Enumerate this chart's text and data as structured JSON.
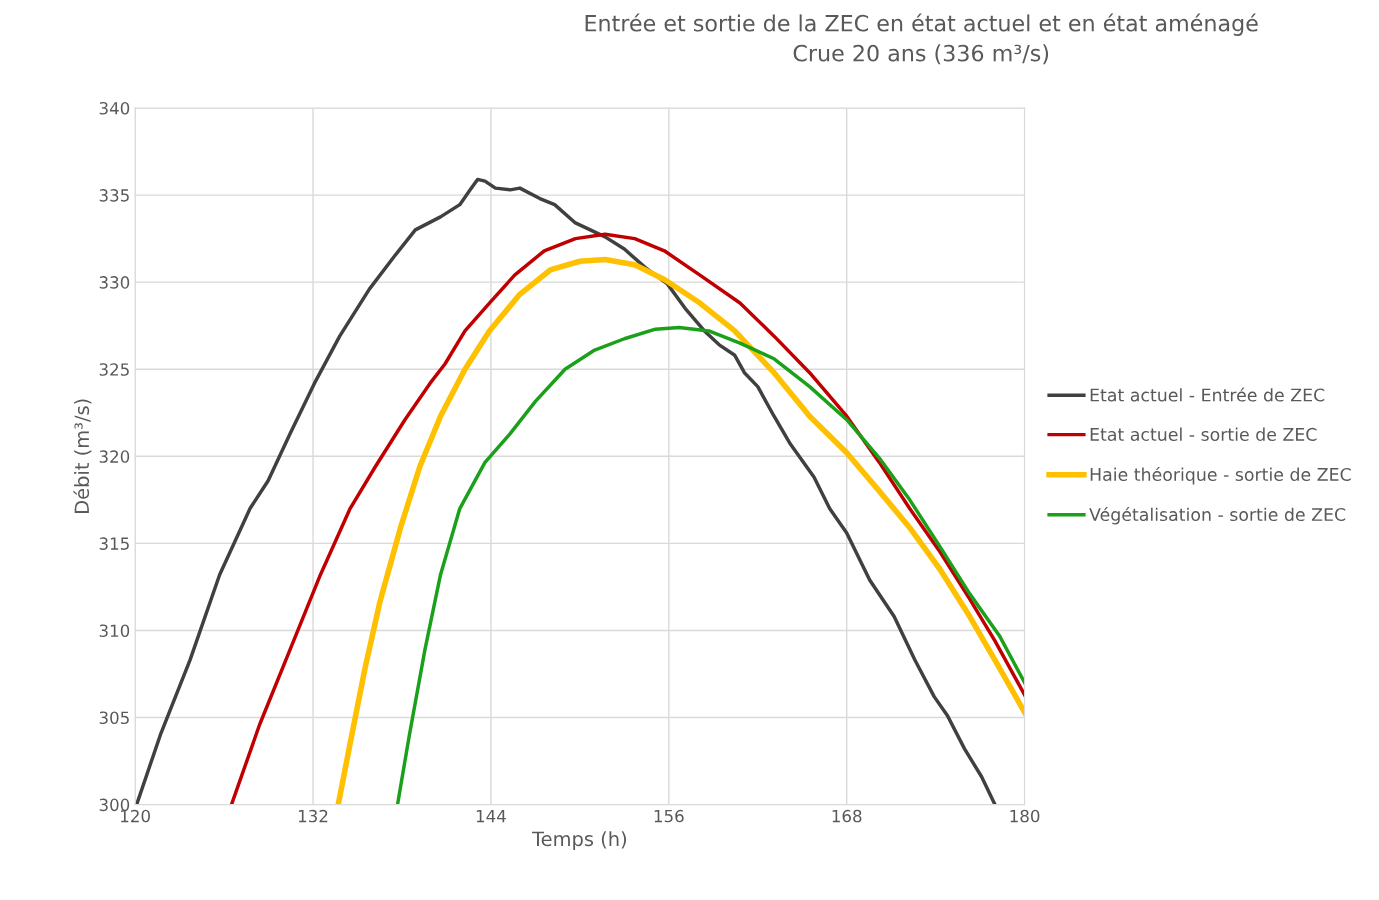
{
  "chart_data": {
    "type": "line",
    "title": "Entrée et sortie de la ZEC en état actuel et en état aménagé\nCrue 20 ans (336 m³/s)",
    "xlabel": "Temps (h)",
    "ylabel": "Débit (m³/s)",
    "xlim": [
      120,
      180
    ],
    "xticks": [
      120,
      132,
      144,
      156,
      168,
      180
    ],
    "ylim": [
      300,
      340
    ],
    "yticks": [
      300,
      305,
      310,
      315,
      320,
      325,
      330,
      335,
      340
    ],
    "grid": true,
    "legend": "right",
    "marker": "none",
    "line_style": "solid",
    "series": [
      {
        "name": "Etat actuel - Entrée de ZEC",
        "color": "#404040",
        "x": [
          120.1,
          121.7,
          123.7,
          125.7,
          127.75,
          128.97,
          130.45,
          132.1,
          133.8,
          135.8,
          137.5,
          138.9,
          140.6,
          141.9,
          142.6,
          143.1,
          143.6,
          144.3,
          145.3,
          145.95,
          147.3,
          148.3,
          149.7,
          151.7,
          153.0,
          154.4,
          155.9,
          157.1,
          158.4,
          159.4,
          160.45,
          161.1,
          162.0,
          163.1,
          164.2,
          165.8,
          166.85,
          168.0,
          169.55,
          171.2,
          172.6,
          173.9,
          174.8,
          175.95,
          177.1,
          178.0
        ],
        "values": [
          300.0,
          304.0,
          308.3,
          313.2,
          317.0,
          318.6,
          321.3,
          324.2,
          326.9,
          329.6,
          331.5,
          333.0,
          333.75,
          334.45,
          335.3,
          335.9,
          335.8,
          335.4,
          335.3,
          335.4,
          334.8,
          334.45,
          333.4,
          332.6,
          331.9,
          330.85,
          329.9,
          328.5,
          327.2,
          326.4,
          325.8,
          324.8,
          324.0,
          322.3,
          320.7,
          318.8,
          317.0,
          315.6,
          312.9,
          310.8,
          308.3,
          306.2,
          305.1,
          303.2,
          301.6,
          300.0
        ]
      },
      {
        "name": "Etat actuel - sortie de ZEC",
        "color": "#c00000",
        "x": [
          126.5,
          128.4,
          130.45,
          132.5,
          134.5,
          136.2,
          138.2,
          139.9,
          140.9,
          142.25,
          143.9,
          145.6,
          147.6,
          149.7,
          151.7,
          153.7,
          155.7,
          158.1,
          160.8,
          163.1,
          165.5,
          168.0,
          170.2,
          172.25,
          174.3,
          176.3,
          178.0,
          180.0
        ],
        "values": [
          300.0,
          304.6,
          308.9,
          313.2,
          317.0,
          319.4,
          322.1,
          324.2,
          325.3,
          327.2,
          328.8,
          330.4,
          331.8,
          332.5,
          332.75,
          332.5,
          331.8,
          330.4,
          328.8,
          326.9,
          324.8,
          322.3,
          319.65,
          317.0,
          314.5,
          311.8,
          309.4,
          306.3
        ]
      },
      {
        "name": "Haie théorique - sortie de ZEC",
        "color": "#ffc000",
        "x": [
          133.7,
          134.5,
          135.5,
          136.5,
          137.9,
          139.2,
          140.6,
          142.25,
          143.9,
          145.95,
          148.0,
          150.0,
          151.7,
          153.7,
          155.7,
          158.1,
          160.45,
          163.1,
          165.5,
          168.0,
          170.2,
          172.25,
          174.3,
          176.3,
          178.0,
          180.0
        ],
        "values": [
          300.0,
          303.5,
          307.8,
          311.6,
          315.9,
          319.4,
          322.3,
          325.0,
          327.2,
          329.3,
          330.7,
          331.2,
          331.3,
          331.0,
          330.15,
          328.8,
          327.2,
          324.8,
          322.3,
          320.2,
          318.0,
          315.9,
          313.5,
          310.8,
          308.3,
          305.3
        ]
      },
      {
        "name": "Végétalisation - sortie de ZEC",
        "color": "#1aa01a",
        "x": [
          137.7,
          138.5,
          139.55,
          140.6,
          141.9,
          143.6,
          145.3,
          147.0,
          149.0,
          151.0,
          153.0,
          155.1,
          156.7,
          158.7,
          160.8,
          163.1,
          165.5,
          168.0,
          170.2,
          172.25,
          174.3,
          176.3,
          178.3,
          180.0
        ],
        "values": [
          300.0,
          304.0,
          308.9,
          313.2,
          317.0,
          319.65,
          321.3,
          323.15,
          325.0,
          326.1,
          326.75,
          327.3,
          327.4,
          327.2,
          326.5,
          325.6,
          324.0,
          322.1,
          319.9,
          317.5,
          314.8,
          312.1,
          309.7,
          307.0
        ]
      }
    ]
  }
}
